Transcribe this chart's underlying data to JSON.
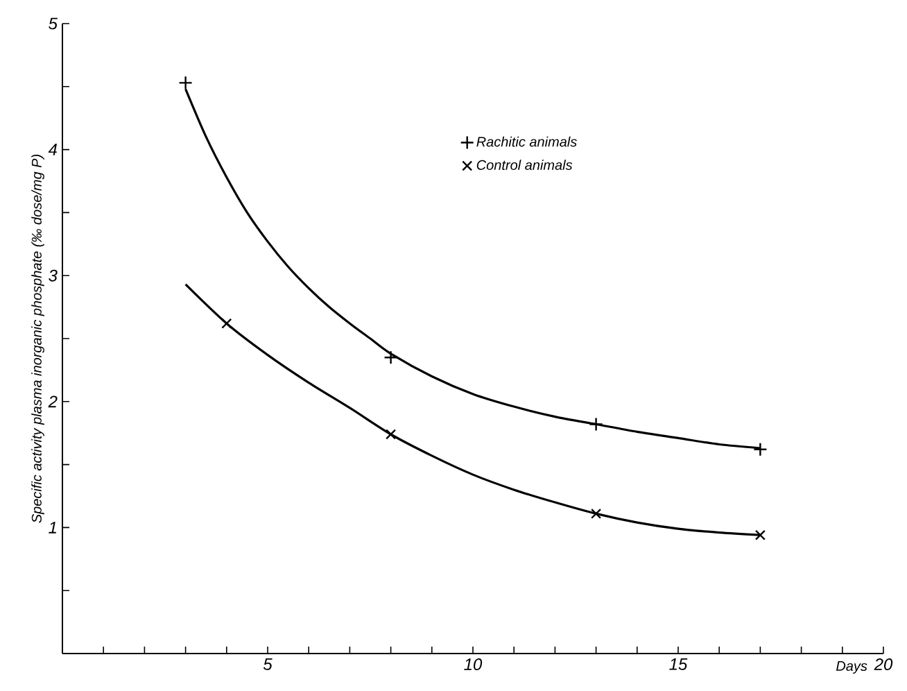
{
  "chart_data": {
    "type": "scatter",
    "xlabel": "Days",
    "ylabel": "Specific activity plasma inorganic phosphate (‰ dose/mg P)",
    "xlim": [
      0,
      20
    ],
    "ylim": [
      0,
      5
    ],
    "xticks": [
      {
        "value": 1,
        "label": null
      },
      {
        "value": 2,
        "label": null
      },
      {
        "value": 3,
        "label": null
      },
      {
        "value": 4,
        "label": null
      },
      5,
      {
        "value": 6,
        "label": null
      },
      {
        "value": 7,
        "label": null
      },
      {
        "value": 8,
        "label": null
      },
      {
        "value": 9,
        "label": null
      },
      10,
      {
        "value": 11,
        "label": null
      },
      {
        "value": 12,
        "label": null
      },
      {
        "value": 13,
        "label": null
      },
      {
        "value": 14,
        "label": null
      },
      15,
      {
        "value": 16,
        "label": null
      },
      {
        "value": 17,
        "label": null
      },
      {
        "value": 18,
        "label": null
      },
      {
        "value": 19,
        "label": null
      },
      20
    ],
    "yticks": [
      {
        "value": 0.5,
        "label": null
      },
      1,
      {
        "value": 1.5,
        "label": null
      },
      2,
      {
        "value": 2.5,
        "label": null
      },
      3,
      {
        "value": 3.5,
        "label": null
      },
      4,
      {
        "value": 4.5,
        "label": null
      },
      5
    ],
    "grid": false,
    "legend": "top",
    "series": [
      {
        "type": "line",
        "color": "#000000",
        "marker": "none",
        "x": [
          3,
          3.5,
          4,
          4.5,
          5,
          5.5,
          6,
          6.5,
          7,
          7.5,
          8,
          9,
          10,
          11,
          12,
          13,
          14,
          15,
          16,
          17
        ],
        "values": [
          4.48,
          4.1,
          3.78,
          3.5,
          3.27,
          3.07,
          2.9,
          2.75,
          2.62,
          2.5,
          2.38,
          2.2,
          2.06,
          1.96,
          1.88,
          1.82,
          1.76,
          1.71,
          1.66,
          1.63
        ]
      },
      {
        "type": "line",
        "color": "#000000",
        "marker": "none",
        "x": [
          3,
          4,
          5,
          6,
          7,
          8,
          9,
          10,
          11,
          12,
          13,
          14,
          15,
          16,
          17
        ],
        "values": [
          2.93,
          2.62,
          2.37,
          2.15,
          1.95,
          1.74,
          1.57,
          1.42,
          1.3,
          1.2,
          1.11,
          1.04,
          0.99,
          0.96,
          0.94
        ]
      },
      {
        "name": "Rachitic animals",
        "color": "#000000",
        "marker": "plus",
        "x": [
          3,
          8,
          13,
          17
        ],
        "values": [
          4.53,
          2.35,
          1.82,
          1.62
        ]
      },
      {
        "name": "Control animals",
        "color": "#000000",
        "marker": "cross",
        "x": [
          4,
          8,
          13,
          17
        ],
        "values": [
          2.62,
          1.74,
          1.11,
          0.94
        ]
      }
    ]
  }
}
